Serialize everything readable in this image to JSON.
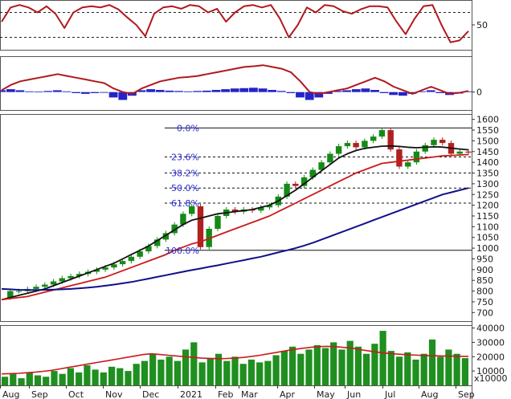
{
  "chart_data": [
    {
      "type": "line",
      "panel": "rsi",
      "y_ticks": [
        "50"
      ],
      "reference_levels": [
        70,
        30
      ],
      "ylim": [
        10,
        90
      ],
      "series": [
        {
          "color": "#b0191e",
          "values": [
            55,
            78,
            82,
            78,
            70,
            80,
            68,
            45,
            70,
            78,
            80,
            78,
            82,
            75,
            62,
            50,
            32,
            68,
            78,
            80,
            76,
            82,
            80,
            70,
            76,
            55,
            70,
            80,
            82,
            78,
            82,
            60,
            30,
            50,
            78,
            70,
            82,
            80,
            72,
            68,
            75,
            80,
            80,
            78,
            55,
            35,
            60,
            80,
            82,
            50,
            22,
            25,
            40
          ]
        }
      ]
    },
    {
      "type": "line",
      "panel": "macd",
      "y_ticks": [
        "0"
      ],
      "ylim": [
        -5,
        10
      ],
      "series": [
        {
          "color": "#b0191e",
          "values": [
            0.5,
            2,
            3,
            3.5,
            4,
            4.5,
            5,
            4.5,
            4,
            3.5,
            3,
            2.5,
            1,
            0,
            -0.5,
            1,
            2,
            3,
            3.5,
            4,
            4.2,
            4.5,
            5,
            5.5,
            6,
            6.5,
            7,
            7.2,
            7.5,
            7,
            6.5,
            5.5,
            3,
            0,
            -0.5,
            0,
            0.5,
            1,
            2,
            3,
            4,
            3,
            1.5,
            0.5,
            -0.5,
            0.5,
            1.5,
            0.5,
            -0.5,
            -0.2,
            0.3
          ]
        },
        {
          "color": "#2424c8",
          "values": [
            0.5,
            0.8,
            0.5,
            0.2,
            0.1,
            0.3,
            0.5,
            0.2,
            -0.3,
            -0.5,
            -0.3,
            -0.2,
            -1.5,
            -2.2,
            -1,
            0.5,
            0.8,
            0.6,
            0.4,
            0.3,
            0.2,
            0.3,
            0.4,
            0.6,
            0.8,
            1,
            1.1,
            1.2,
            1,
            0.6,
            0.3,
            -0.3,
            -1.5,
            -2.2,
            -1.5,
            -0.5,
            0.3,
            0.5,
            0.8,
            1,
            0.6,
            -0.3,
            -0.8,
            -1,
            -0.5,
            0.2,
            0.5,
            -0.3,
            -0.8,
            -0.4,
            0.2
          ]
        }
      ]
    },
    {
      "type": "line",
      "panel": "price",
      "x_tick_labels": [
        "Aug",
        "Sep",
        "Oct",
        "Nov",
        "Dec",
        "2021",
        "Feb",
        "Mar",
        "Apr",
        "May",
        "Jun",
        "Jul",
        "Aug",
        "Sep"
      ],
      "y_ticks": [
        "700",
        "750",
        "800",
        "850",
        "900",
        "950",
        "1000",
        "1050",
        "1100",
        "1150",
        "1200",
        "1250",
        "1300",
        "1350",
        "1400",
        "1450",
        "1500",
        "1550",
        "1600"
      ],
      "ylim": [
        660,
        1625
      ],
      "fibonacci": [
        {
          "label": "0.0%",
          "value": 1560
        },
        {
          "label": "23.6%",
          "value": 1425
        },
        {
          "label": "38.2%",
          "value": 1350
        },
        {
          "label": "50.0%",
          "value": 1280
        },
        {
          "label": "61.8%",
          "value": 1210
        },
        {
          "label": "100.0%",
          "value": 990
        }
      ],
      "series": [
        {
          "color": "#158a15",
          "values": [
            770,
            800,
            800,
            810,
            820,
            830,
            845,
            860,
            870,
            880,
            890,
            900,
            910,
            925,
            940,
            960,
            985,
            1010,
            1040,
            1070,
            1110,
            1160,
            1195,
            1005,
            1090,
            1150,
            1180,
            1170,
            1180,
            1175,
            1190,
            1200,
            1240,
            1300,
            1290,
            1330,
            1365,
            1400,
            1440,
            1475,
            1490,
            1470,
            1500,
            1520,
            1550,
            1460,
            1380,
            1400,
            1450,
            1480,
            1505,
            1490,
            1440,
            1450,
            1445
          ]
        },
        {
          "color": "#111111",
          "values": [
            760,
            770,
            780,
            790,
            800,
            810,
            825,
            840,
            855,
            870,
            885,
            900,
            915,
            930,
            950,
            970,
            990,
            1010,
            1035,
            1060,
            1085,
            1110,
            1130,
            1140,
            1150,
            1160,
            1165,
            1170,
            1175,
            1180,
            1190,
            1200,
            1220,
            1245,
            1270,
            1300,
            1330,
            1360,
            1390,
            1420,
            1440,
            1455,
            1465,
            1470,
            1475,
            1476,
            1474,
            1470,
            1468,
            1470,
            1472,
            1471,
            1466,
            1462,
            1458
          ]
        },
        {
          "color": "#cc1a1a",
          "values": [
            760,
            765,
            770,
            775,
            785,
            795,
            805,
            815,
            825,
            835,
            845,
            855,
            865,
            880,
            895,
            910,
            925,
            940,
            955,
            970,
            990,
            1005,
            1020,
            1030,
            1045,
            1060,
            1075,
            1090,
            1105,
            1120,
            1135,
            1150,
            1170,
            1190,
            1210,
            1230,
            1250,
            1270,
            1290,
            1310,
            1330,
            1350,
            1365,
            1380,
            1395,
            1400,
            1405,
            1410,
            1415,
            1420,
            1425,
            1430,
            1432,
            1434,
            1436
          ]
        },
        {
          "color": "#10108a",
          "values": [
            810,
            808,
            806,
            805,
            805,
            806,
            807,
            808,
            810,
            813,
            816,
            820,
            825,
            830,
            836,
            842,
            850,
            858,
            866,
            874,
            882,
            890,
            898,
            905,
            913,
            920,
            928,
            936,
            944,
            952,
            960,
            970,
            980,
            990,
            1000,
            1012,
            1025,
            1040,
            1055,
            1070,
            1085,
            1100,
            1115,
            1130,
            1145,
            1160,
            1175,
            1190,
            1205,
            1220,
            1235,
            1250,
            1260,
            1270,
            1280
          ]
        }
      ]
    },
    {
      "type": "bar",
      "panel": "volume",
      "y_ticks": [
        "10000",
        "20000",
        "30000",
        "40000"
      ],
      "units_label": "x10000",
      "ylim": [
        0,
        42000
      ],
      "bar_color": "#1f8f1f",
      "values": [
        6000,
        8000,
        5000,
        9000,
        7000,
        6000,
        10000,
        8000,
        12000,
        9000,
        14000,
        11000,
        9000,
        13000,
        12000,
        10000,
        15000,
        17000,
        22000,
        18000,
        20000,
        17000,
        25000,
        30000,
        16000,
        19000,
        22000,
        17000,
        20000,
        15000,
        18000,
        16000,
        17000,
        21000,
        24000,
        27000,
        22000,
        25000,
        28000,
        26000,
        30000,
        25000,
        31000,
        27000,
        22000,
        29000,
        38000,
        24000,
        20000,
        23000,
        18000,
        22000,
        32000,
        20000,
        25000,
        22000,
        19000
      ],
      "series": [
        {
          "color": "#cc1a1a",
          "values": [
            8000,
            8200,
            8400,
            8800,
            9200,
            9800,
            10500,
            11500,
            12500,
            13500,
            14500,
            15500,
            16500,
            17500,
            18500,
            19500,
            20500,
            21500,
            22000,
            21500,
            21000,
            20500,
            20000,
            19500,
            19000,
            18800,
            18600,
            18700,
            19000,
            19500,
            20200,
            21000,
            22000,
            23000,
            24000,
            25000,
            25800,
            26500,
            27000,
            27200,
            27000,
            26500,
            26000,
            25000,
            24000,
            23200,
            22500,
            22000,
            21600,
            21300,
            21000,
            20800,
            20600,
            20500,
            20400,
            20300,
            20200
          ]
        }
      ]
    }
  ]
}
